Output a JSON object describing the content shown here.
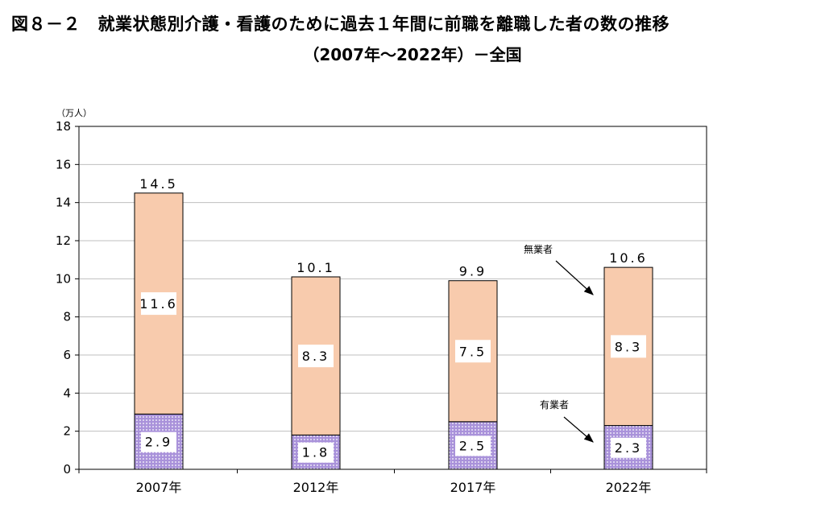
{
  "title": {
    "line1": "図８－２　就業状態別介護・看護のために過去１年間に前職を離職した者の数の推移",
    "line2": "（2007年～2022年）－全国"
  },
  "colors": {
    "upper_fill": "#F8CBAD",
    "lower_fill": "#A992DA",
    "lower_dots": "#ffffff",
    "grid": "#bfbfbf",
    "frame": "#000000"
  },
  "chart_data": {
    "type": "bar",
    "stacked": true,
    "unit_label": "（万人）",
    "categories": [
      "2007年",
      "2012年",
      "2017年",
      "2022年"
    ],
    "series": [
      {
        "name": "有業者",
        "values": [
          2.9,
          1.8,
          2.5,
          2.3
        ],
        "color": "#A992DA",
        "pattern": "dotted"
      },
      {
        "name": "無業者",
        "values": [
          11.6,
          8.3,
          7.5,
          8.3
        ],
        "color": "#F8CBAD"
      }
    ],
    "totals": [
      14.5,
      10.1,
      9.9,
      10.6
    ],
    "segment_labels": {
      "upper": [
        "11.6",
        "8.3",
        "7.5",
        "8.3"
      ],
      "lower": [
        "2.9",
        "1.8",
        "2.5",
        "2.3"
      ]
    },
    "total_labels": [
      "14.5",
      "10.1",
      "9.9",
      "10.6"
    ],
    "ylim": [
      0,
      18
    ],
    "yticks": [
      0,
      2,
      4,
      6,
      8,
      10,
      12,
      14,
      16,
      18
    ],
    "grid": true,
    "annotations": [
      {
        "text": "無業者",
        "points_to": "2022年 upper segment"
      },
      {
        "text": "有業者",
        "points_to": "2022年 lower segment"
      }
    ]
  }
}
